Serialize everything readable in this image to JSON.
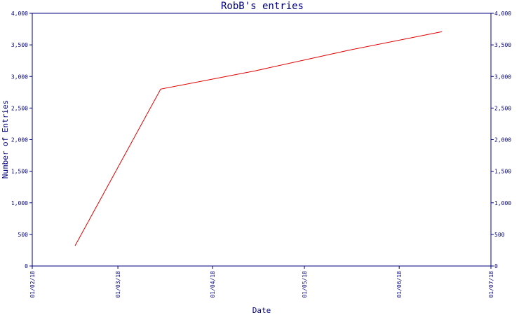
{
  "chart_data": {
    "type": "line",
    "title": "RobB's entries",
    "xlabel": "Date",
    "ylabel": "Number of Entries",
    "x_ticks": [
      "01/02/18",
      "01/03/18",
      "01/04/18",
      "01/05/18",
      "01/06/18",
      "01/07/18"
    ],
    "x_tick_dates": [
      "2018-02-01",
      "2018-03-01",
      "2018-04-01",
      "2018-05-01",
      "2018-06-01",
      "2018-07-01"
    ],
    "xlim": [
      "2018-02-01",
      "2018-07-01"
    ],
    "y_ticks": [
      "0",
      "500",
      "1,000",
      "1,500",
      "2,000",
      "2,500",
      "3,000",
      "3,500",
      "4,000"
    ],
    "ylim": [
      0,
      4000
    ],
    "grid": false,
    "y_axis_right": true,
    "series": [
      {
        "color": "#e00000",
        "x": [
          "2018-02-15",
          "2018-03-15",
          "2018-04-15",
          "2018-05-15",
          "2018-06-15"
        ],
        "y": [
          320,
          2800,
          3090,
          3410,
          3710
        ]
      }
    ]
  }
}
